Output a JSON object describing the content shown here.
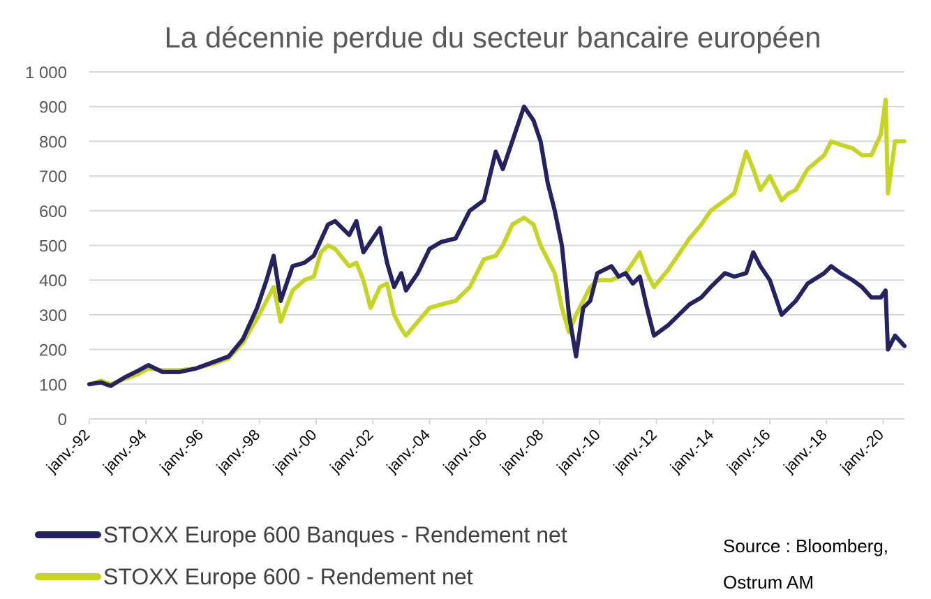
{
  "chart_data": {
    "type": "line",
    "title": "La décennie perdue du secteur bancaire européen",
    "ylim": [
      0,
      1000
    ],
    "yticks": [
      0,
      100,
      200,
      300,
      400,
      500,
      600,
      700,
      800,
      900,
      1000
    ],
    "ytick_labels": [
      "0",
      "100",
      "200",
      "300",
      "400",
      "500",
      "600",
      "700",
      "800",
      "900",
      "1 000"
    ],
    "xlim": [
      "1992-01",
      "2020-10"
    ],
    "xtick_labels": [
      "janv.-92",
      "janv.-94",
      "janv.-96",
      "janv.-98",
      "janv.-00",
      "janv.-02",
      "janv.-04",
      "janv.-06",
      "janv.-08",
      "janv.-10",
      "janv.-12",
      "janv.-14",
      "janv.-16",
      "janv.-18",
      "janv.-20"
    ],
    "grid": true,
    "legend_position": "bottom-left",
    "series": [
      {
        "name": "STOXX Europe 600 Banques - Rendement net",
        "color": "#262262",
        "x": [
          "1992-01",
          "1992-06",
          "1992-10",
          "1993-04",
          "1993-10",
          "1994-02",
          "1994-08",
          "1995-03",
          "1995-10",
          "1996-06",
          "1996-12",
          "1997-06",
          "1997-12",
          "1998-04",
          "1998-07",
          "1998-10",
          "1999-03",
          "1999-08",
          "1999-12",
          "2000-06",
          "2000-09",
          "2001-03",
          "2001-06",
          "2001-09",
          "2001-12",
          "2002-04",
          "2002-07",
          "2002-10",
          "2003-01",
          "2003-03",
          "2003-08",
          "2004-01",
          "2004-06",
          "2004-12",
          "2005-06",
          "2005-12",
          "2006-05",
          "2006-08",
          "2006-12",
          "2007-05",
          "2007-09",
          "2007-12",
          "2008-03",
          "2008-06",
          "2008-09",
          "2008-12",
          "2009-03",
          "2009-06",
          "2009-09",
          "2009-12",
          "2010-06",
          "2010-09",
          "2010-12",
          "2011-03",
          "2011-06",
          "2011-09",
          "2011-12",
          "2012-06",
          "2012-09",
          "2013-03",
          "2013-08",
          "2013-12",
          "2014-06",
          "2014-10",
          "2015-03",
          "2015-06",
          "2015-09",
          "2016-01",
          "2016-06",
          "2016-09",
          "2016-12",
          "2017-05",
          "2017-12",
          "2018-03",
          "2018-07",
          "2018-12",
          "2019-04",
          "2019-08",
          "2019-12",
          "2020-02",
          "2020-03",
          "2020-06",
          "2020-10"
        ],
        "values": [
          100,
          105,
          95,
          120,
          140,
          155,
          135,
          135,
          145,
          165,
          180,
          230,
          320,
          400,
          470,
          340,
          440,
          450,
          470,
          560,
          570,
          530,
          570,
          480,
          510,
          550,
          450,
          380,
          420,
          370,
          420,
          490,
          510,
          520,
          600,
          630,
          770,
          720,
          800,
          900,
          860,
          800,
          680,
          600,
          500,
          300,
          180,
          320,
          340,
          420,
          440,
          410,
          420,
          390,
          410,
          320,
          240,
          270,
          290,
          330,
          350,
          380,
          420,
          410,
          420,
          480,
          440,
          400,
          300,
          320,
          340,
          390,
          420,
          440,
          420,
          400,
          380,
          350,
          350,
          370,
          200,
          240,
          210
        ]
      },
      {
        "name": "STOXX Europe 600 - Rendement net",
        "color": "#c5d520",
        "x": [
          "1992-01",
          "1992-06",
          "1992-10",
          "1993-04",
          "1993-10",
          "1994-02",
          "1994-08",
          "1995-03",
          "1995-10",
          "1996-06",
          "1996-12",
          "1997-06",
          "1997-12",
          "1998-04",
          "1998-07",
          "1998-10",
          "1999-03",
          "1999-08",
          "1999-12",
          "2000-03",
          "2000-06",
          "2000-09",
          "2001-03",
          "2001-06",
          "2001-09",
          "2001-12",
          "2002-04",
          "2002-07",
          "2002-10",
          "2003-01",
          "2003-03",
          "2003-08",
          "2004-01",
          "2004-06",
          "2004-12",
          "2005-06",
          "2005-12",
          "2006-05",
          "2006-08",
          "2006-12",
          "2007-05",
          "2007-09",
          "2007-12",
          "2008-03",
          "2008-06",
          "2008-09",
          "2008-12",
          "2009-03",
          "2009-06",
          "2009-09",
          "2009-12",
          "2010-06",
          "2010-09",
          "2010-12",
          "2011-03",
          "2011-06",
          "2011-09",
          "2011-12",
          "2012-06",
          "2012-09",
          "2013-03",
          "2013-08",
          "2013-12",
          "2014-06",
          "2014-10",
          "2015-03",
          "2015-06",
          "2015-09",
          "2016-01",
          "2016-06",
          "2016-09",
          "2016-12",
          "2017-05",
          "2017-12",
          "2018-03",
          "2018-07",
          "2018-12",
          "2019-04",
          "2019-08",
          "2019-12",
          "2020-02",
          "2020-03",
          "2020-06",
          "2020-10"
        ],
        "values": [
          100,
          110,
          100,
          115,
          130,
          145,
          140,
          140,
          145,
          160,
          175,
          220,
          290,
          340,
          380,
          280,
          370,
          400,
          410,
          480,
          500,
          490,
          440,
          450,
          400,
          320,
          380,
          390,
          300,
          260,
          240,
          280,
          320,
          330,
          340,
          380,
          460,
          470,
          500,
          560,
          580,
          560,
          500,
          460,
          420,
          320,
          250,
          300,
          340,
          380,
          400,
          400,
          410,
          420,
          450,
          480,
          420,
          380,
          430,
          460,
          520,
          560,
          600,
          630,
          650,
          770,
          720,
          660,
          700,
          630,
          650,
          660,
          720,
          760,
          800,
          790,
          780,
          760,
          760,
          820,
          920,
          650,
          800,
          800
        ]
      }
    ],
    "source": "Source : Bloomberg,\nOstrum AM"
  }
}
